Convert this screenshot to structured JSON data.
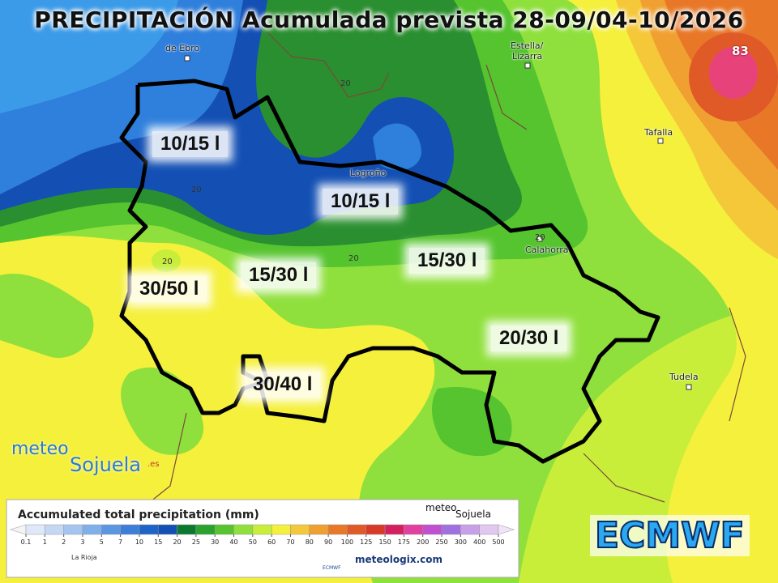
{
  "title": "PRECIPITACIÓN Acumulada prevista 28-09/04-10/2026",
  "max_value_label": "83",
  "places": [
    "de Ebro",
    "Estella/",
    "Lizarra",
    "Logroño",
    "Tafalla",
    "Calahorra",
    "Tudela"
  ],
  "contour_labels": [
    20,
    20,
    20,
    20,
    20
  ],
  "zone_labels": [
    "10/15 l",
    "10/15 l",
    "15/30 l",
    "15/30 l",
    "30/50 l",
    "20/30 l",
    "30/40 l"
  ],
  "brand": {
    "logo_top": "meteo",
    "logo_bottom": "Sojuela",
    "logo_suffix": ".es"
  },
  "model_badge": "ECMWF",
  "legend": {
    "title": "Accumulated total precipitation (mm)",
    "ticks": [
      0.1,
      1,
      2,
      3,
      5,
      7,
      10,
      15,
      20,
      25,
      30,
      40,
      50,
      60,
      70,
      80,
      90,
      100,
      125,
      150,
      175,
      200,
      250,
      300,
      400,
      500
    ],
    "colors": [
      "#f4f4f4",
      "#dfe8f8",
      "#c4d8f5",
      "#a5c4f0",
      "#7fb0ea",
      "#5b96e2",
      "#3c7ed8",
      "#1e64c8",
      "#1450b4",
      "#0b7a2e",
      "#2aa22e",
      "#55c42e",
      "#8fe03c",
      "#c8ee3a",
      "#f5f03c",
      "#f5c83a",
      "#f0a030",
      "#e87828",
      "#e05a28",
      "#d83a28",
      "#d42060",
      "#e040a0",
      "#c050d0",
      "#a070e0",
      "#c8a0e8",
      "#e0c8f0",
      "#f0e4f8"
    ],
    "region": "La Rioja",
    "model": "ECMWF",
    "source": "meteologix.com"
  }
}
